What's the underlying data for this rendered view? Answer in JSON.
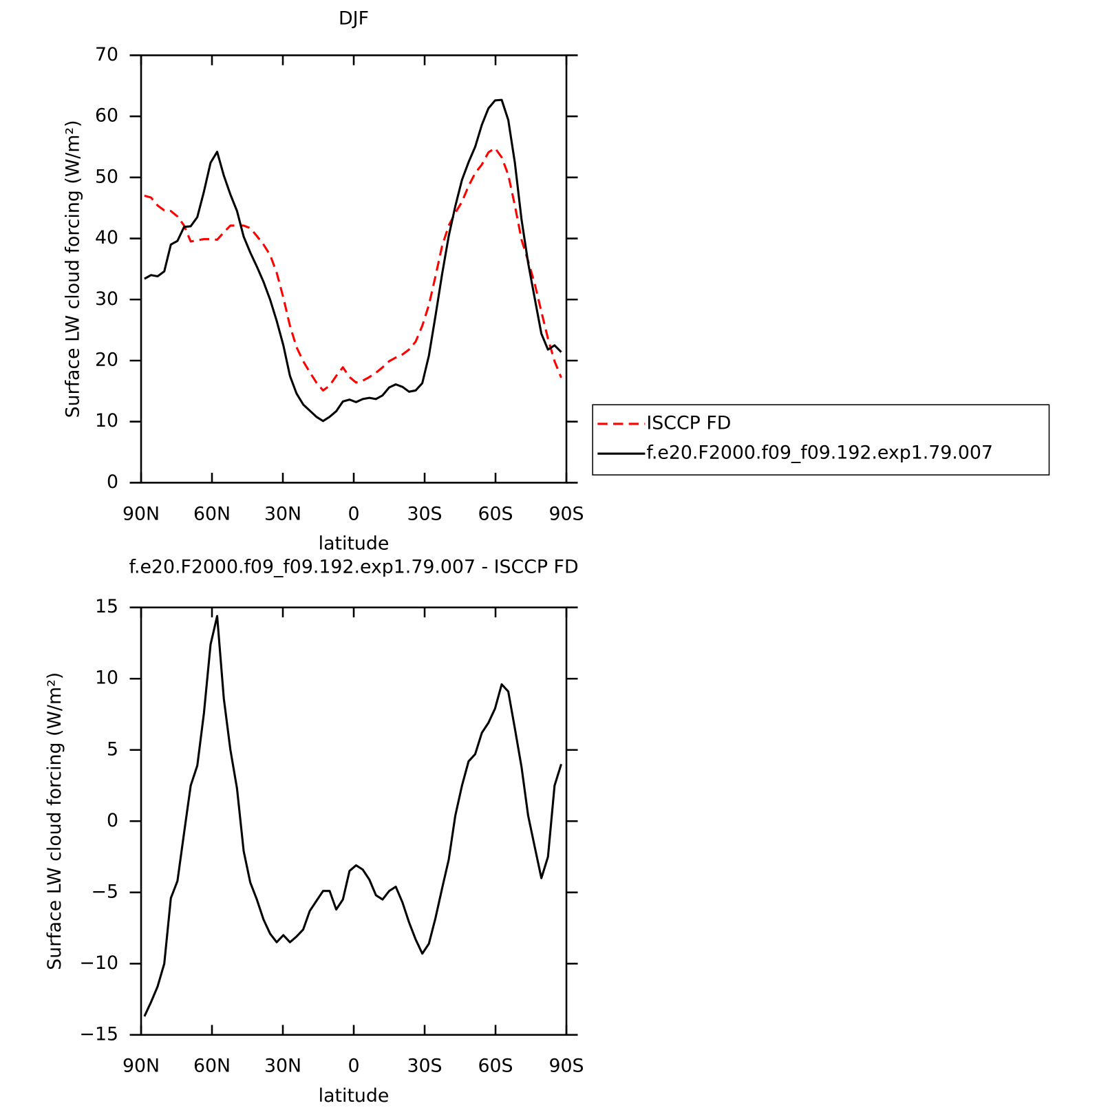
{
  "chart_data": [
    {
      "type": "line",
      "title": "DJF",
      "x_label": "latitude",
      "y_label": "Surface LW cloud forcing (W/m²)",
      "x": [
        88.6,
        85.8,
        83.0,
        80.2,
        77.4,
        74.6,
        71.8,
        69.0,
        66.2,
        63.4,
        60.6,
        57.8,
        55.0,
        52.2,
        49.4,
        46.6,
        43.8,
        41.0,
        38.2,
        35.4,
        32.6,
        29.8,
        27.0,
        24.2,
        21.4,
        18.6,
        15.8,
        13.0,
        10.2,
        7.4,
        4.6,
        1.8,
        -1.0,
        -3.8,
        -6.6,
        -9.4,
        -12.2,
        -15.0,
        -17.8,
        -20.6,
        -23.4,
        -26.2,
        -29.0,
        -31.8,
        -34.6,
        -37.4,
        -40.2,
        -43.0,
        -45.8,
        -48.6,
        -51.4,
        -54.2,
        -57.0,
        -59.8,
        -62.6,
        -65.4,
        -68.2,
        -71.0,
        -73.8,
        -76.6,
        -79.4,
        -82.2,
        -85.0,
        -87.8
      ],
      "series": [
        {
          "name": "ISCCP FD",
          "color": "#ff0000",
          "dashed": true,
          "values": [
            47.0,
            46.7,
            45.4,
            44.6,
            44.5,
            43.6,
            42.1,
            39.5,
            39.7,
            39.9,
            39.9,
            39.8,
            41.0,
            42.1,
            42.1,
            42.1,
            41.7,
            40.4,
            39.0,
            37.3,
            34.4,
            30.3,
            25.7,
            22.2,
            19.9,
            18.1,
            16.4,
            15.1,
            15.9,
            17.5,
            18.9,
            17.3,
            16.4,
            16.7,
            17.3,
            18.0,
            18.9,
            19.9,
            20.5,
            21.0,
            21.8,
            23.1,
            25.7,
            29.1,
            33.8,
            38.8,
            42.1,
            44.2,
            46.0,
            48.6,
            50.7,
            52.1,
            54.1,
            54.8,
            53.3,
            50.4,
            45.4,
            39.8,
            36.3,
            32.6,
            28.0,
            23.6,
            19.9,
            17.2
          ]
        },
        {
          "name": "f.e20.F2000.f09_f09.192.exp1.79.007",
          "color": "#000000",
          "dashed": false,
          "values": [
            33.4,
            34.0,
            33.8,
            34.6,
            39.0,
            39.6,
            41.9,
            42.0,
            43.5,
            47.7,
            52.4,
            54.2,
            50.3,
            47.2,
            44.5,
            40.3,
            37.7,
            35.4,
            32.9,
            30.0,
            26.5,
            22.5,
            17.5,
            14.6,
            12.8,
            11.8,
            10.8,
            10.1,
            10.8,
            11.7,
            13.3,
            13.6,
            13.2,
            13.7,
            13.9,
            13.7,
            14.3,
            15.6,
            16.1,
            15.7,
            14.9,
            15.1,
            16.3,
            20.8,
            27.3,
            34.2,
            40.4,
            45.3,
            49.6,
            52.5,
            55.0,
            58.6,
            61.3,
            62.6,
            62.7,
            59.4,
            52.4,
            43.1,
            36.0,
            30.2,
            24.4,
            21.8,
            22.5,
            21.4
          ]
        }
      ],
      "xlim": [
        90,
        -90
      ],
      "xticks": [
        {
          "value": 90,
          "label": "90N"
        },
        {
          "value": 60,
          "label": "60N"
        },
        {
          "value": 30,
          "label": "30N"
        },
        0,
        {
          "value": -30,
          "label": "30S"
        },
        {
          "value": -60,
          "label": "60S"
        },
        {
          "value": -90,
          "label": "90S"
        }
      ],
      "ylim": [
        0,
        70
      ],
      "yticks": [
        0,
        10,
        20,
        30,
        40,
        50,
        60,
        70
      ],
      "legend": "right"
    },
    {
      "type": "line",
      "title": "f.e20.F2000.f09_f09.192.exp1.79.007 - ISCCP FD",
      "x_label": "latitude",
      "y_label": "Surface LW cloud forcing (W/m²)",
      "x": [
        88.6,
        85.8,
        83.0,
        80.2,
        77.4,
        74.6,
        71.8,
        69.0,
        66.2,
        63.4,
        60.6,
        57.8,
        55.0,
        52.2,
        49.4,
        46.6,
        43.8,
        41.0,
        38.2,
        35.4,
        32.6,
        29.8,
        27.0,
        24.2,
        21.4,
        18.6,
        15.8,
        13.0,
        10.2,
        7.4,
        4.6,
        1.8,
        -1.0,
        -3.8,
        -6.6,
        -9.4,
        -12.2,
        -15.0,
        -17.8,
        -20.6,
        -23.4,
        -26.2,
        -29.0,
        -31.8,
        -34.6,
        -37.4,
        -40.2,
        -43.0,
        -45.8,
        -48.6,
        -51.4,
        -54.2,
        -57.0,
        -59.8,
        -62.6,
        -65.4,
        -68.2,
        -71.0,
        -73.8,
        -76.6,
        -79.4,
        -82.2,
        -85.0,
        -87.8
      ],
      "series": [
        {
          "color": "#000000",
          "dashed": false,
          "values": [
            -13.7,
            -12.7,
            -11.6,
            -10.0,
            -5.4,
            -4.2,
            -0.8,
            2.5,
            3.9,
            7.6,
            12.4,
            14.4,
            8.6,
            5.0,
            2.3,
            -2.1,
            -4.3,
            -5.5,
            -6.9,
            -7.9,
            -8.5,
            -8.0,
            -8.5,
            -8.1,
            -7.6,
            -6.3,
            -5.6,
            -4.9,
            -4.9,
            -6.2,
            -5.5,
            -3.5,
            -3.1,
            -3.4,
            -4.1,
            -5.2,
            -5.5,
            -4.9,
            -4.6,
            -5.7,
            -7.1,
            -8.3,
            -9.3,
            -8.6,
            -6.8,
            -4.7,
            -2.7,
            0.4,
            2.5,
            4.2,
            4.7,
            6.2,
            6.9,
            7.9,
            9.6,
            9.1,
            6.5,
            3.8,
            0.4,
            -1.8,
            -4.0,
            -2.5,
            2.5,
            4.0
          ]
        }
      ],
      "xlim": [
        90,
        -90
      ],
      "xticks": [
        {
          "value": 90,
          "label": "90N"
        },
        {
          "value": 60,
          "label": "60N"
        },
        {
          "value": 30,
          "label": "30N"
        },
        0,
        {
          "value": -30,
          "label": "30S"
        },
        {
          "value": -60,
          "label": "60S"
        },
        {
          "value": -90,
          "label": "90S"
        }
      ],
      "ylim": [
        -15,
        15
      ],
      "yticks": [
        {
          "value": -15,
          "label": "−15"
        },
        {
          "value": -10,
          "label": "−10"
        },
        {
          "value": -5,
          "label": "−5"
        },
        0,
        5,
        10,
        15
      ]
    }
  ]
}
